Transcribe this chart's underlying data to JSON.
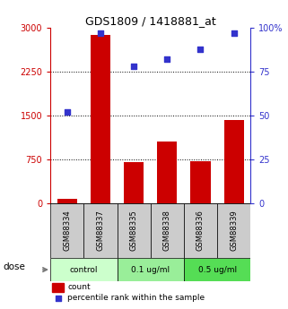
{
  "title": "GDS1809 / 1418881_at",
  "categories": [
    "GSM88334",
    "GSM88337",
    "GSM88335",
    "GSM88338",
    "GSM88336",
    "GSM88339"
  ],
  "bar_values": [
    75,
    2875,
    700,
    1050,
    725,
    1425
  ],
  "scatter_values": [
    52,
    97,
    78,
    82,
    88,
    97
  ],
  "ylim_left": [
    0,
    3000
  ],
  "ylim_right": [
    0,
    100
  ],
  "yticks_left": [
    0,
    750,
    1500,
    2250,
    3000
  ],
  "yticks_right": [
    0,
    25,
    50,
    75,
    100
  ],
  "ytick_labels_left": [
    "0",
    "750",
    "1500",
    "2250",
    "3000"
  ],
  "ytick_labels_right": [
    "0",
    "25",
    "50",
    "75",
    "100%"
  ],
  "bar_color": "#cc0000",
  "scatter_color": "#3333cc",
  "dose_groups": [
    {
      "label": "control",
      "start": 0,
      "end": 2,
      "color": "#ccffcc"
    },
    {
      "label": "0.1 ug/ml",
      "start": 2,
      "end": 4,
      "color": "#99ee99"
    },
    {
      "label": "0.5 ug/ml",
      "start": 4,
      "end": 6,
      "color": "#55dd55"
    }
  ],
  "sample_bg_color": "#cccccc",
  "dose_label": "dose",
  "legend_count_label": "count",
  "legend_pct_label": "percentile rank within the sample",
  "left_axis_color": "#cc0000",
  "right_axis_color": "#3333cc",
  "background_color": "#ffffff"
}
